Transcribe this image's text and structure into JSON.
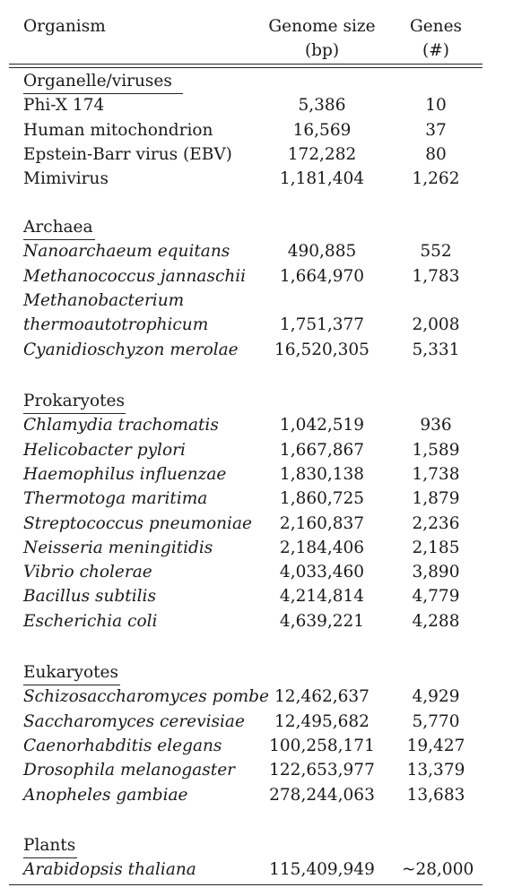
{
  "headers": {
    "organism": "Organism",
    "genome_size": "Genome size",
    "genome_size_unit": "(bp)",
    "genes": "Genes",
    "genes_unit": "(#)"
  },
  "sections": [
    {
      "title": "Organelle/viruses",
      "rows": [
        {
          "organism": "Phi-X 174",
          "italic": false,
          "genome_size": "5,386",
          "genes": "10"
        },
        {
          "organism": "Human mitochondrion",
          "italic": false,
          "genome_size": "16,569",
          "genes": "37"
        },
        {
          "organism": "Epstein-Barr virus (EBV)",
          "italic": false,
          "genome_size": "172,282",
          "genes": "80"
        },
        {
          "organism": "Mimivirus",
          "italic": false,
          "genome_size": "1,181,404",
          "genes": "1,262"
        }
      ]
    },
    {
      "title": "Archaea",
      "rows": [
        {
          "organism": "Nanoarchaeum equitans",
          "italic": true,
          "genome_size": "490,885",
          "genes": "552"
        },
        {
          "organism": "Methanococcus jannaschii",
          "italic": true,
          "genome_size": "1,664,970",
          "genes": "1,783"
        },
        {
          "organism": "Methanobacterium",
          "italic": true,
          "genome_size": "",
          "genes": ""
        },
        {
          "organism": "thermoautotrophicum",
          "italic": true,
          "genome_size": "1,751,377",
          "genes": "2,008"
        },
        {
          "organism": "Cyanidioschyzon merolae",
          "italic": true,
          "genome_size": "16,520,305",
          "genes": "5,331"
        }
      ]
    },
    {
      "title": "Prokaryotes",
      "rows": [
        {
          "organism": "Chlamydia trachomatis",
          "italic": true,
          "genome_size": "1,042,519",
          "genes": "936"
        },
        {
          "organism": "Helicobacter pylori",
          "italic": true,
          "genome_size": "1,667,867",
          "genes": "1,589"
        },
        {
          "organism": "Haemophilus influenzae",
          "italic": true,
          "genome_size": "1,830,138",
          "genes": "1,738"
        },
        {
          "organism": "Thermotoga maritima",
          "italic": true,
          "genome_size": "1,860,725",
          "genes": "1,879"
        },
        {
          "organism": "Streptococcus pneumoniae",
          "italic": true,
          "genome_size": "2,160,837",
          "genes": "2,236"
        },
        {
          "organism": "Neisseria meningitidis",
          "italic": true,
          "genome_size": "2,184,406",
          "genes": "2,185"
        },
        {
          "organism": "Vibrio cholerae",
          "italic": true,
          "genome_size": "4,033,460",
          "genes": "3,890"
        },
        {
          "organism": "Bacillus subtilis",
          "italic": true,
          "genome_size": "4,214,814",
          "genes": "4,779"
        },
        {
          "organism": "Escherichia coli",
          "italic": true,
          "genome_size": "4,639,221",
          "genes": "4,288"
        }
      ]
    },
    {
      "title": "Eukaryotes",
      "rows": [
        {
          "organism": "Schizosaccharomyces pombe",
          "italic": true,
          "genome_size": "12,462,637",
          "genes": "4,929"
        },
        {
          "organism": "Saccharomyces cerevisiae",
          "italic": true,
          "genome_size": "12,495,682",
          "genes": "5,770"
        },
        {
          "organism": "Caenorhabditis elegans",
          "italic": true,
          "genome_size": "100,258,171",
          "genes": "19,427"
        },
        {
          "organism": "Drosophila melanogaster",
          "italic": true,
          "genome_size": "122,653,977",
          "genes": "13,379"
        },
        {
          "organism": "Anopheles gambiae",
          "italic": true,
          "genome_size": "278,244,063",
          "genes": "13,683"
        }
      ]
    },
    {
      "title": "Plants",
      "rows": [
        {
          "organism": "Arabidopsis thaliana",
          "italic": true,
          "genome_size": "115,409,949",
          "genes": "~28,000"
        }
      ]
    }
  ]
}
